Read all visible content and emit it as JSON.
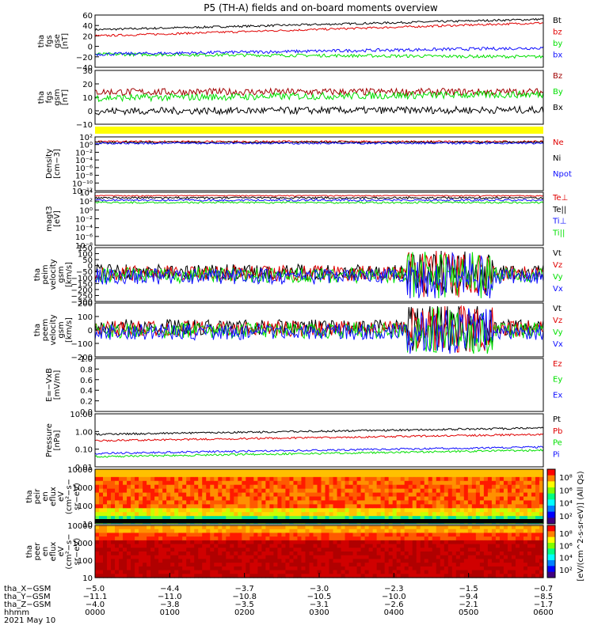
{
  "title": "P5 (TH-A) fields and on-board moments overview",
  "colors": {
    "black": "#000000",
    "red": "#e00000",
    "green": "#00e000",
    "blue": "#1010ff",
    "darkred": "#a00000",
    "yellow": "#ffff00"
  },
  "chart_data": [
    {
      "type": "line",
      "id": "fgs_gse",
      "ylabel": [
        "tha",
        "fgs",
        "gse",
        "[nT]"
      ],
      "ylim": [
        -40,
        60
      ],
      "yticks": [
        "60",
        "40",
        "20",
        "0",
        "−20",
        "−40"
      ],
      "series": [
        {
          "name": "Bt",
          "color": "#000000",
          "start": 32,
          "end": 52,
          "noise": 2
        },
        {
          "name": "bz",
          "color": "#e00000",
          "start": 20,
          "end": 45,
          "noise": 2
        },
        {
          "name": "by",
          "color": "#00e000",
          "start": -15,
          "end": -20,
          "noise": 3
        },
        {
          "name": "bx",
          "color": "#1010ff",
          "start": -15,
          "end": -3,
          "noise": 3
        }
      ]
    },
    {
      "type": "line",
      "id": "fgs_gsm",
      "ylabel": [
        "tha",
        "fgs",
        "gsm",
        "[nT]"
      ],
      "ylim": [
        -15,
        30
      ],
      "yticks": [
        "30",
        "20",
        "10",
        "0",
        "−10"
      ],
      "series": [
        {
          "name": "Bz",
          "color": "#a00000",
          "start": 12,
          "end": 12,
          "noise": 3
        },
        {
          "name": "By",
          "color": "#00e000",
          "start": 7,
          "end": 10,
          "noise": 3
        },
        {
          "name": "Bx",
          "color": "#000000",
          "start": -4,
          "end": -3,
          "noise": 3
        }
      ]
    },
    {
      "type": "line",
      "id": "density",
      "ylabel": [
        "Density",
        "[cm−3]"
      ],
      "yticks": [
        "10²",
        "10⁰",
        "10⁻²",
        "10⁻⁴",
        "10⁻⁶",
        "10⁻⁸",
        "10⁻¹⁰",
        "10⁻¹²"
      ],
      "series": [
        {
          "name": "Ne",
          "color": "#e00000"
        },
        {
          "name": "Ni",
          "color": "#000000"
        },
        {
          "name": "Npot",
          "color": "#1010ff"
        }
      ]
    },
    {
      "type": "line",
      "id": "temperature",
      "ylabel": [
        "magt3",
        "[eV]"
      ],
      "yticks": [
        "10⁴",
        "10²",
        "10⁰",
        "10⁻²",
        "10⁻⁴",
        "10⁻⁶",
        "10⁻⁸"
      ],
      "series": [
        {
          "name": "Te⊥",
          "color": "#e00000"
        },
        {
          "name": "Te||",
          "color": "#000000"
        },
        {
          "name": "Ti⊥",
          "color": "#1010ff"
        },
        {
          "name": "Ti||",
          "color": "#00e000"
        }
      ]
    },
    {
      "type": "line",
      "id": "peim_velocity",
      "ylabel": [
        "tha",
        "peim",
        "velocity",
        "gsm",
        "[km/s]"
      ],
      "ylim": [
        -300,
        150
      ],
      "yticks": [
        "150",
        "100",
        "50",
        "0",
        "−50",
        "−100",
        "−150",
        "−200",
        "−250",
        "−300"
      ],
      "series": [
        {
          "name": "Vt",
          "color": "#000000"
        },
        {
          "name": "Vz",
          "color": "#e00000"
        },
        {
          "name": "Vy",
          "color": "#00e000"
        },
        {
          "name": "Vx",
          "color": "#1010ff"
        }
      ]
    },
    {
      "type": "line",
      "id": "peem_velocity",
      "ylabel": [
        "tha",
        "peem",
        "velocity",
        "gsm",
        "[km/s]"
      ],
      "ylim": [
        -200,
        200
      ],
      "yticks": [
        "200",
        "100",
        "0",
        "−100",
        "−200"
      ],
      "series": [
        {
          "name": "Vt",
          "color": "#000000"
        },
        {
          "name": "Vz",
          "color": "#e00000"
        },
        {
          "name": "Vy",
          "color": "#00e000"
        },
        {
          "name": "Vx",
          "color": "#1010ff"
        }
      ]
    },
    {
      "type": "line",
      "id": "efield",
      "ylabel": [
        "E=−VxB",
        "[mV/m]"
      ],
      "ylim": [
        0,
        1
      ],
      "yticks": [
        "1.0",
        "0.8",
        "0.6",
        "0.4",
        "0.2",
        "0.0"
      ],
      "series": [
        {
          "name": "Ez",
          "color": "#e00000"
        },
        {
          "name": "Ey",
          "color": "#00e000"
        },
        {
          "name": "Ex",
          "color": "#1010ff"
        }
      ]
    },
    {
      "type": "line",
      "id": "pressure",
      "ylabel": [
        "Pressure",
        "[nPa]"
      ],
      "yticks": [
        "10.00",
        "1.00",
        "0.10",
        "0.01"
      ],
      "series": [
        {
          "name": "Pt",
          "color": "#000000"
        },
        {
          "name": "Pb",
          "color": "#e00000"
        },
        {
          "name": "Pe",
          "color": "#00e000"
        },
        {
          "name": "Pi",
          "color": "#1010ff"
        }
      ]
    },
    {
      "type": "heatmap",
      "id": "peir_spectrogram",
      "ylabel": [
        "tha",
        "peir",
        "en",
        "eflux",
        "eV",
        "(cm²−s−",
        "sr−eV)"
      ],
      "yticks": [
        "10000",
        "1000",
        "100",
        "10"
      ],
      "colorbar_ticks": [
        "10⁸",
        "10⁶",
        "10⁴",
        "10²"
      ]
    },
    {
      "type": "heatmap",
      "id": "peer_spectrogram",
      "ylabel": [
        "tha",
        "peer",
        "en",
        "eflux",
        "eV",
        "(cm²−s−",
        "sr−eV)"
      ],
      "yticks": [
        "10000",
        "1000",
        "100",
        "10"
      ],
      "colorbar_ticks": [
        "10⁸",
        "10⁶",
        "10⁴",
        "10²"
      ]
    }
  ],
  "colorbar_label": "[eV/(cm^2-s-sr-eV)] (All Qs)",
  "ephemeris": {
    "rows": [
      {
        "label": "tha_X−GSM",
        "values": [
          "−5.0",
          "−4.4",
          "−3.7",
          "−3.0",
          "−2.3",
          "−1.5",
          "−0.7"
        ]
      },
      {
        "label": "tha_Y−GSM",
        "values": [
          "−11.1",
          "−11.0",
          "−10.8",
          "−10.5",
          "−10.0",
          "−9.4",
          "−8.5"
        ]
      },
      {
        "label": "tha_Z−GSM",
        "values": [
          "−4.0",
          "−3.8",
          "−3.5",
          "−3.1",
          "−2.6",
          "−2.1",
          "−1.7"
        ]
      },
      {
        "label": "hhmm",
        "values": [
          "0000",
          "0100",
          "0200",
          "0300",
          "0400",
          "0500",
          "0600"
        ]
      }
    ],
    "date": "2021 May 10"
  }
}
